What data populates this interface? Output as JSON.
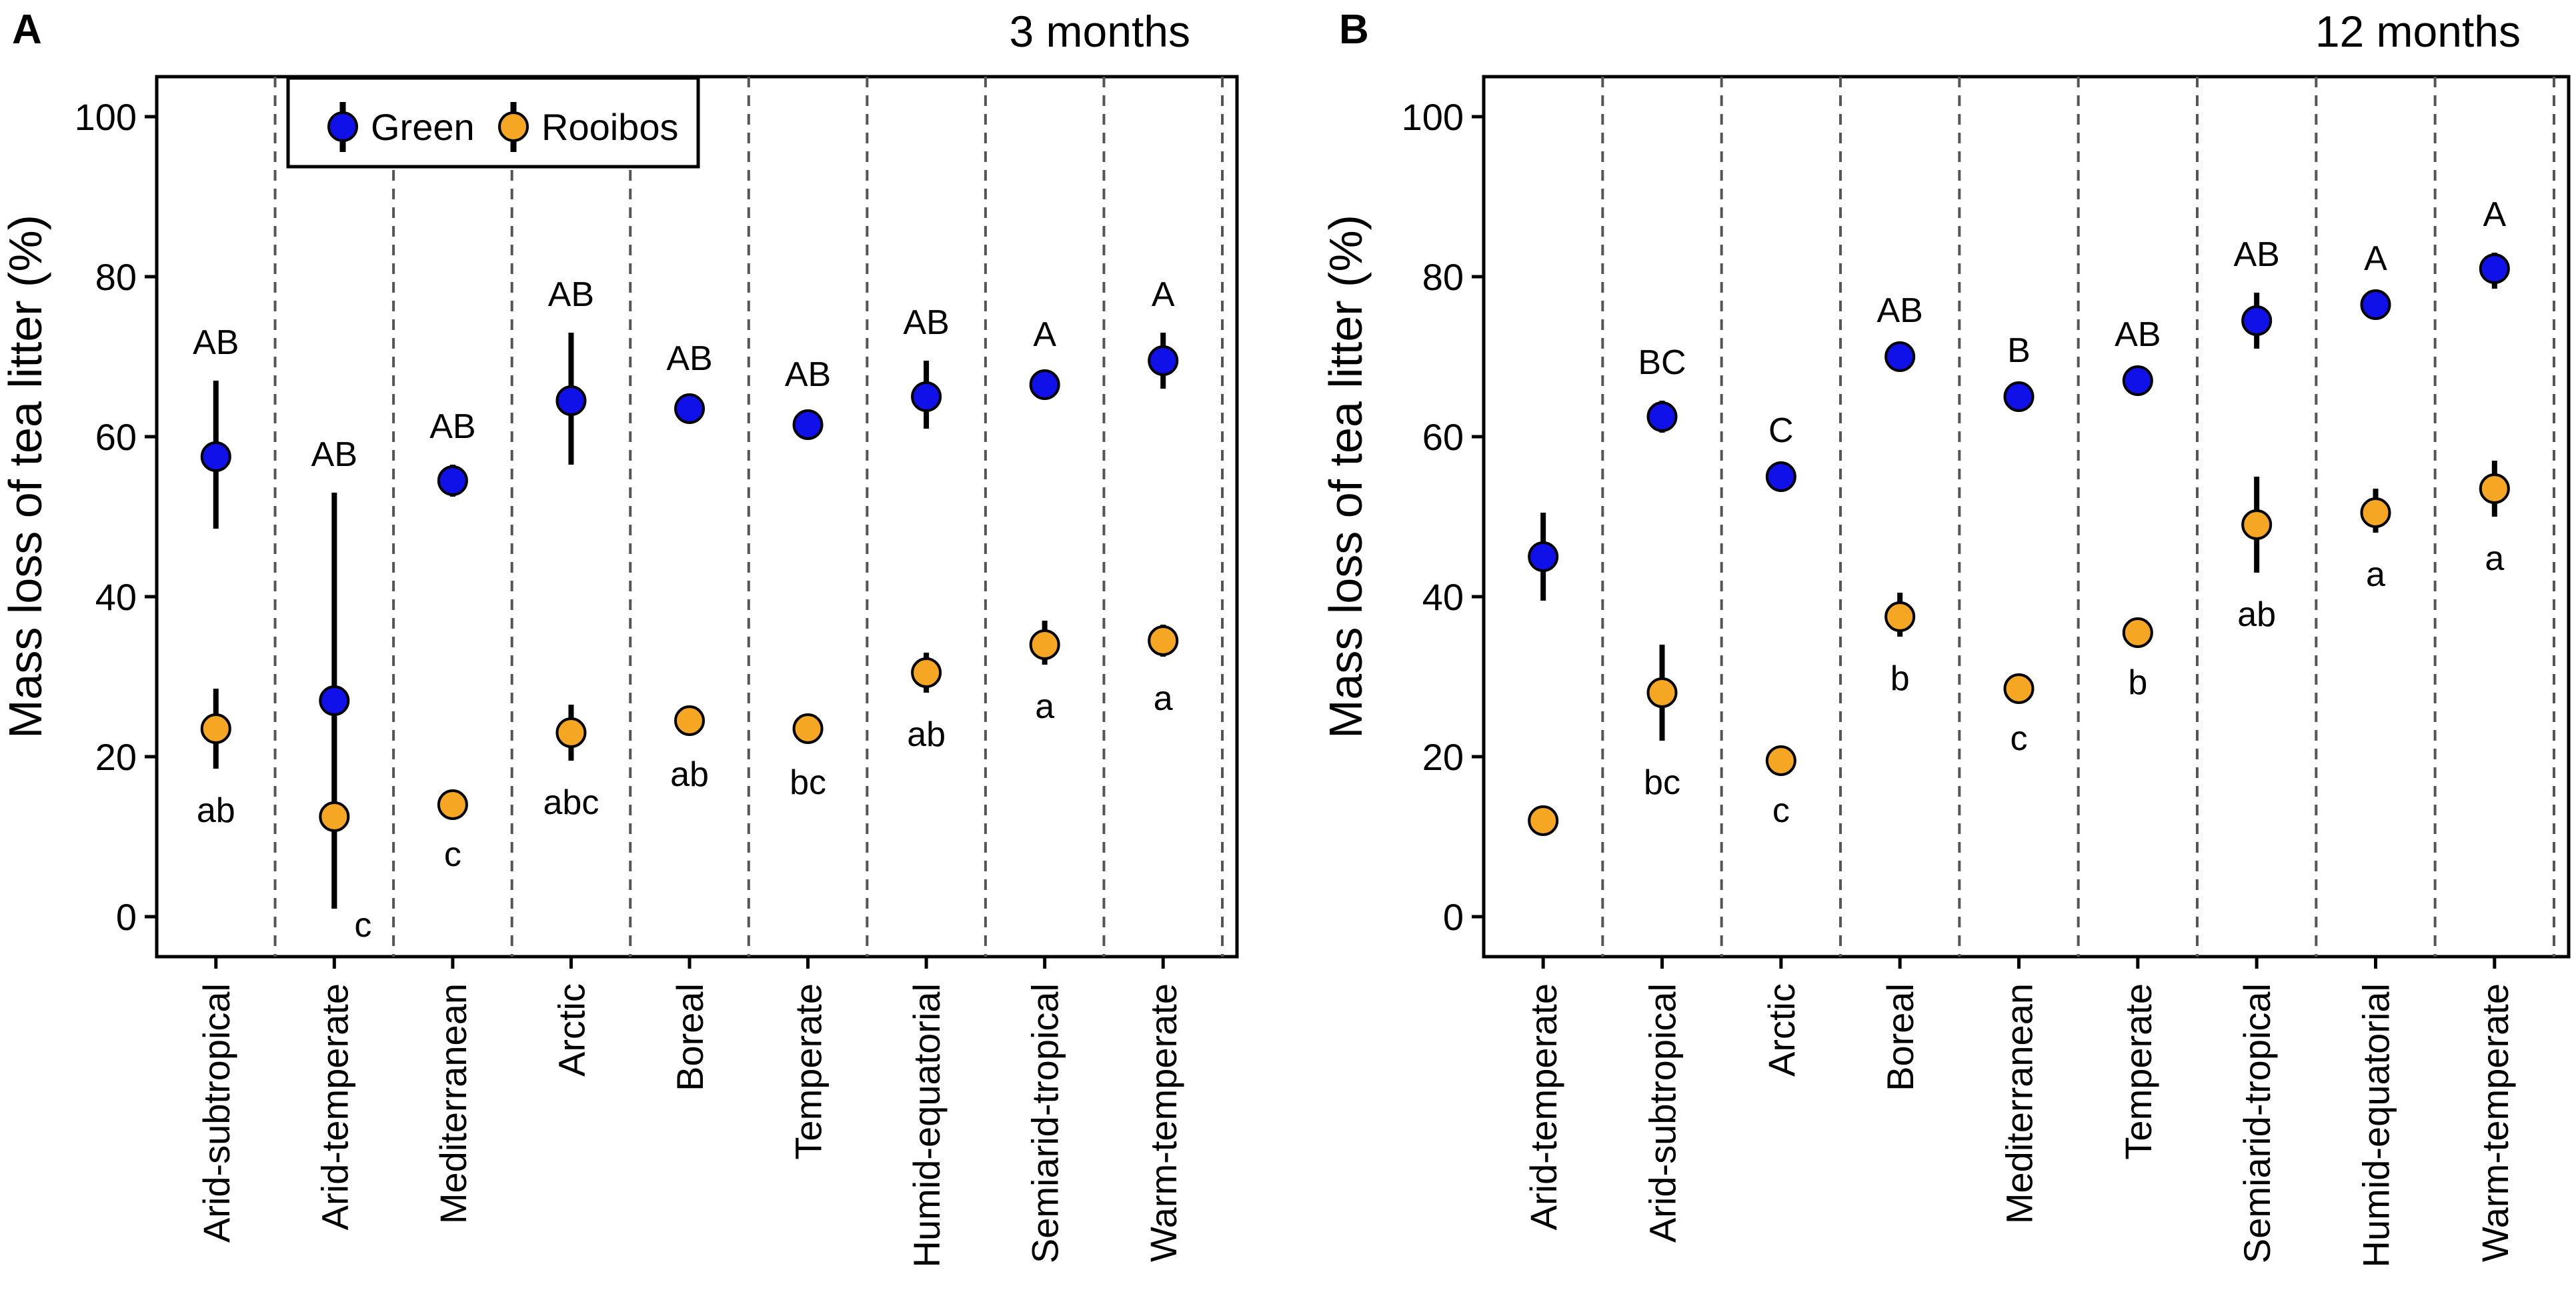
{
  "figure": {
    "panel_labels": [
      "A",
      "B"
    ],
    "legend": {
      "items": [
        {
          "label": "Green",
          "color": "#1010e8"
        },
        {
          "label": "Rooibos",
          "color": "#f5a623"
        }
      ]
    }
  },
  "chart_data": [
    {
      "type": "scatter",
      "panel": "A",
      "title": "3 months",
      "xlabel": "",
      "ylabel": "Mass loss of tea litter (%)",
      "ylim": [
        -5,
        105
      ],
      "yticks": [
        0,
        20,
        40,
        60,
        80,
        100
      ],
      "categories": [
        "Arid-subtropical",
        "Arid-temperate",
        "Mediterranean",
        "Arctic",
        "Boreal",
        "Temperate",
        "Humid-equatorial",
        "Semiarid-tropical",
        "Warm-temperate"
      ],
      "series": [
        {
          "name": "Green",
          "color": "#1010e8",
          "values": [
            57.5,
            27,
            54.5,
            64.5,
            63.5,
            61.5,
            65,
            66.5,
            69.5
          ],
          "err_low": [
            48.5,
            1,
            52.5,
            56.5,
            62.5,
            60,
            61,
            65,
            66
          ],
          "err_high": [
            67,
            53,
            56.5,
            73,
            65,
            63,
            69.5,
            68,
            73
          ],
          "letters": [
            "AB",
            "AB",
            "AB",
            "AB",
            "AB",
            "AB",
            "AB",
            "A",
            "A"
          ]
        },
        {
          "name": "Rooibos",
          "color": "#f5a623",
          "values": [
            23.5,
            12.5,
            14,
            23,
            24.5,
            23.5,
            30.5,
            34,
            34.5
          ],
          "err_low": [
            18.5,
            1,
            13,
            19.5,
            23,
            22,
            28,
            31.5,
            32.5
          ],
          "err_high": [
            28.5,
            25,
            15,
            26.5,
            26,
            25,
            33,
            37,
            36.5
          ],
          "letters": [
            "ab",
            "c",
            "c",
            "abc",
            "ab",
            "bc",
            "ab",
            "a",
            "a"
          ]
        }
      ]
    },
    {
      "type": "scatter",
      "panel": "B",
      "title": "12 months",
      "xlabel": "",
      "ylabel": "Mass loss of tea litter (%)",
      "ylim": [
        -5,
        105
      ],
      "yticks": [
        0,
        20,
        40,
        60,
        80,
        100
      ],
      "categories": [
        "Arid-temperate",
        "Arid-subtropical",
        "Arctic",
        "Boreal",
        "Mediterranean",
        "Temperate",
        "Semiarid-tropical",
        "Humid-equatorial",
        "Warm-temperate"
      ],
      "series": [
        {
          "name": "Green",
          "color": "#1010e8",
          "values": [
            45,
            62.5,
            55,
            70,
            65,
            67,
            74.5,
            76.5,
            81
          ],
          "err_low": [
            39.5,
            60.5,
            54,
            69,
            64,
            66,
            71,
            75.5,
            78.5
          ],
          "err_high": [
            50.5,
            64.5,
            56,
            71,
            66,
            68,
            78,
            77.5,
            83
          ],
          "letters": [
            "",
            "BC",
            "C",
            "AB",
            "B",
            "AB",
            "AB",
            "A",
            "A"
          ]
        },
        {
          "name": "Rooibos",
          "color": "#f5a623",
          "values": [
            12,
            28,
            19.5,
            37.5,
            28.5,
            35.5,
            49,
            50.5,
            53.5
          ],
          "err_low": [
            11,
            22,
            18.5,
            35,
            27.5,
            34.5,
            43,
            48,
            50
          ],
          "err_high": [
            13,
            34,
            20.5,
            40.5,
            29.5,
            36.5,
            55,
            53.5,
            57
          ],
          "letters": [
            "",
            "bc",
            "c",
            "b",
            "c",
            "b",
            "ab",
            "a",
            "a"
          ]
        }
      ]
    }
  ]
}
